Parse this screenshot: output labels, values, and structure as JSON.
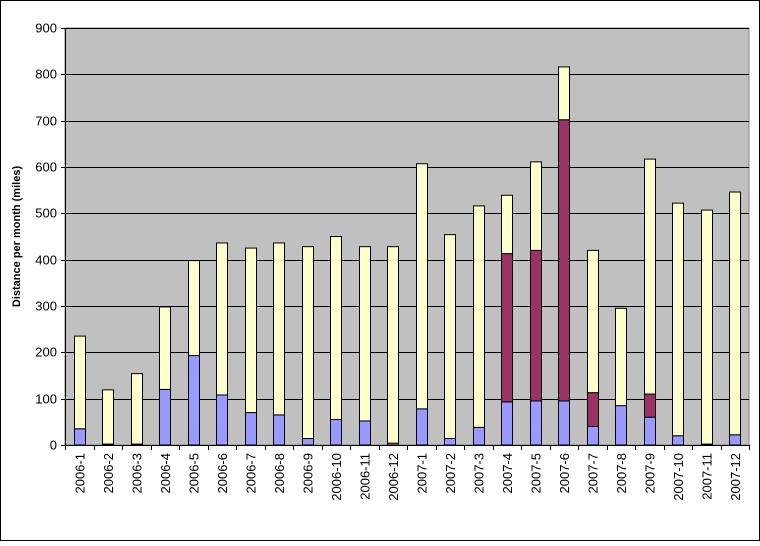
{
  "chart_data": {
    "type": "bar",
    "stacked": true,
    "title": "",
    "xlabel": "",
    "ylabel": "Distance per month (miles)",
    "ylim": [
      0,
      900
    ],
    "yticks": [
      0,
      100,
      200,
      300,
      400,
      500,
      600,
      700,
      800,
      900
    ],
    "grid": true,
    "legend": "none",
    "categories": [
      "2006-1",
      "2006-2",
      "2006-3",
      "2006-4",
      "2006-5",
      "2006-6",
      "2006-7",
      "2006-8",
      "2006-9",
      "2006-10",
      "2006-11",
      "2006-12",
      "2007-1",
      "2007-2",
      "2007-3",
      "2007-4",
      "2007-5",
      "2007-6",
      "2007-7",
      "2007-8",
      "2007-9",
      "2007-10",
      "2007-11",
      "2007-12"
    ],
    "series": [
      {
        "color": "#9999ff",
        "values": [
          35,
          2,
          2,
          120,
          193,
          108,
          70,
          65,
          14,
          55,
          52,
          4,
          78,
          14,
          38,
          93,
          95,
          95,
          40,
          85,
          60,
          20,
          2,
          22
        ]
      },
      {
        "color": "#993366",
        "values": [
          0,
          0,
          0,
          0,
          0,
          0,
          0,
          0,
          0,
          0,
          0,
          0,
          0,
          0,
          0,
          320,
          325,
          607,
          73,
          0,
          50,
          0,
          0,
          0
        ]
      },
      {
        "color": "#ffffcc",
        "values": [
          200,
          117,
          152,
          178,
          205,
          328,
          355,
          371,
          414,
          395,
          376,
          424,
          529,
          440,
          478,
          126,
          191,
          114,
          307,
          210,
          507,
          502,
          505,
          524
        ]
      }
    ]
  },
  "colors": {
    "plot_background": "#c0c0c0",
    "gridline": "#000000",
    "axis": "#000000"
  }
}
